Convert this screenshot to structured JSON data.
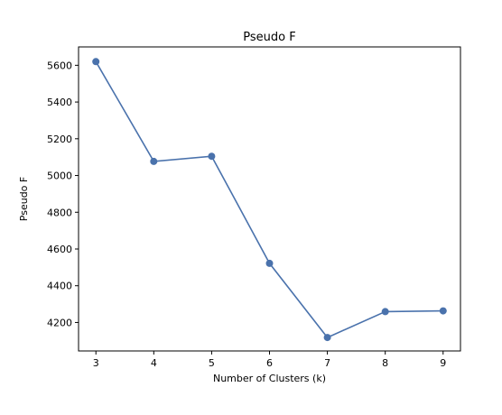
{
  "chart_data": {
    "type": "line",
    "title": "Pseudo F",
    "xlabel": "Number of Clusters (k)",
    "ylabel": "Pseudo F",
    "x": [
      3,
      4,
      5,
      6,
      7,
      8,
      9
    ],
    "series": [
      {
        "values": [
          5620,
          5077,
          5105,
          4522,
          4118,
          4259,
          4263
        ]
      }
    ],
    "xticks": [
      3,
      4,
      5,
      6,
      7,
      8,
      9
    ],
    "yticks": [
      4200,
      4400,
      4600,
      4800,
      5000,
      5200,
      5400,
      5600
    ],
    "xlim": [
      2.7,
      9.3
    ],
    "ylim": [
      4045,
      5700
    ],
    "grid": false,
    "line_color": "#4a72ac",
    "marker": "circle"
  }
}
